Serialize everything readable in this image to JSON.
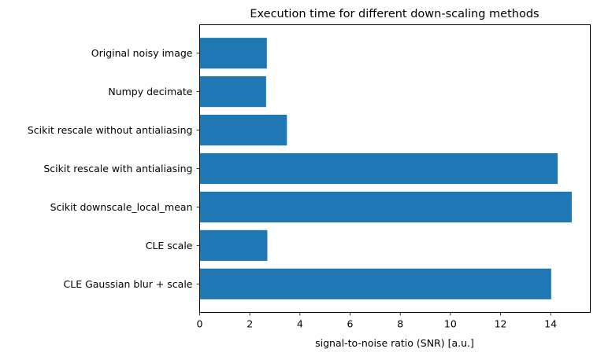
{
  "chart_data": {
    "type": "bar",
    "orientation": "horizontal",
    "title": "Execution time for different down-scaling methods",
    "xlabel": "signal-to-noise ratio (SNR) [a.u.]",
    "ylabel": "",
    "categories": [
      "Original noisy image",
      "Numpy decimate",
      "Scikit rescale without antialiasing",
      "Scikit rescale with antialiasing",
      "Scikit downscale_local_mean",
      "CLE scale",
      "CLE Gaussian blur + scale"
    ],
    "values": [
      2.68,
      2.65,
      3.48,
      14.28,
      14.84,
      2.7,
      14.02
    ],
    "xlim": [
      0,
      15.58
    ],
    "xticks": [
      0,
      2,
      4,
      6,
      8,
      10,
      12,
      14
    ],
    "grid": false,
    "bar_color": "#1f77b4"
  }
}
